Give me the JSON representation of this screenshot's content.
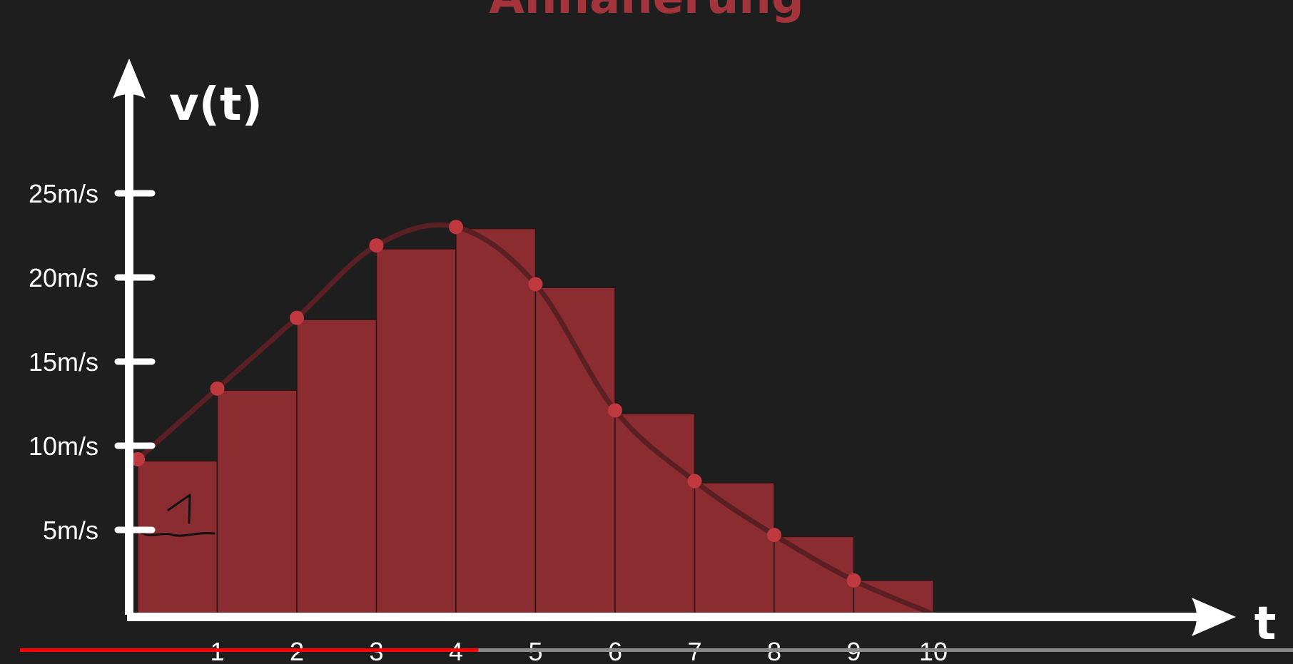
{
  "title": "Annäherung",
  "colors": {
    "background": "#1e1e1e",
    "bar_fill": "#8b2c31",
    "bar_stroke": "#2a1416",
    "curve": "#5a1f22",
    "point": "#c0393f",
    "axis": "#ffffff",
    "title": "#a3343b",
    "progress_played": "#ff0000",
    "progress_track": "#8a8a8a"
  },
  "playback": {
    "progress": 0.36
  },
  "chart_data": {
    "type": "bar",
    "xlabel": "t",
    "ylabel": "v(t)",
    "xlim": [
      0,
      10
    ],
    "ylim": [
      0,
      27
    ],
    "x_ticks": [
      "1",
      "2",
      "3",
      "4",
      "5",
      "6",
      "7",
      "8",
      "9",
      "10"
    ],
    "y_ticks": [
      {
        "value": 5,
        "label": "5m/s"
      },
      {
        "value": 10,
        "label": "10m/s"
      },
      {
        "value": 15,
        "label": "15m/s"
      },
      {
        "value": 20,
        "label": "20m/s"
      },
      {
        "value": 25,
        "label": "25m/s"
      }
    ],
    "bars": [
      {
        "x0": 0,
        "x1": 1,
        "value": 9.1
      },
      {
        "x0": 1,
        "x1": 2,
        "value": 13.3
      },
      {
        "x0": 2,
        "x1": 3,
        "value": 17.5
      },
      {
        "x0": 3,
        "x1": 4,
        "value": 21.7
      },
      {
        "x0": 4,
        "x1": 5,
        "value": 22.9
      },
      {
        "x0": 5,
        "x1": 6,
        "value": 19.4
      },
      {
        "x0": 6,
        "x1": 7,
        "value": 11.9
      },
      {
        "x0": 7,
        "x1": 8,
        "value": 7.8
      },
      {
        "x0": 8,
        "x1": 9,
        "value": 4.6
      },
      {
        "x0": 9,
        "x1": 10,
        "value": 2.0
      }
    ],
    "points": [
      {
        "x": 0,
        "y": 9.2
      },
      {
        "x": 1,
        "y": 13.4
      },
      {
        "x": 2,
        "y": 17.6
      },
      {
        "x": 3,
        "y": 21.9
      },
      {
        "x": 4,
        "y": 23.0
      },
      {
        "x": 5,
        "y": 19.6
      },
      {
        "x": 6,
        "y": 12.1
      },
      {
        "x": 7,
        "y": 7.9
      },
      {
        "x": 8,
        "y": 4.7
      },
      {
        "x": 9,
        "y": 2.0
      }
    ],
    "curve_end": {
      "x": 10,
      "y": 0
    }
  }
}
